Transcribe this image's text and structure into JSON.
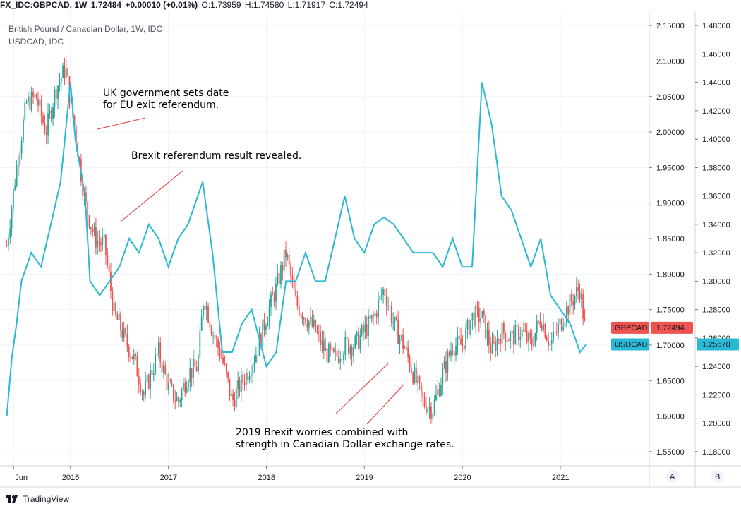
{
  "header": {
    "symbol": "FX_IDC:GBPCAD, 1W",
    "last": "1.72484",
    "change": "+0.00010 (+0.01%)",
    "open": "O:1.73959",
    "high": "H:1.74580",
    "low": "L:1.71917",
    "close": "C:1.72494"
  },
  "legend": {
    "main_title": "British Pound / Canadian Dollar, 1W, IDC",
    "secondary_title": "USDCAD, IDC"
  },
  "colors": {
    "up": "#26a69a",
    "down": "#ef5350",
    "usdcad_line": "#2ab9d4",
    "gbpcad_badge": "#ef5350",
    "usdcad_badge": "#2ab9d4",
    "annotation_line": "#e53935"
  },
  "annotations": [
    {
      "lines": [
        "UK government sets date",
        "for EU exit referendum."
      ]
    },
    {
      "lines": [
        "Brexit referendum result revealed."
      ]
    },
    {
      "lines": [
        "2019 Brexit worries combined with",
        "strength in Canadian Dollar exchange rates."
      ]
    }
  ],
  "badges": {
    "gbpcad_label": "GBPCAD",
    "gbpcad_value": "1.72494",
    "usdcad_label": "USDCAD",
    "usdcad_value": "1.25570"
  },
  "scale_buttons": {
    "a": "A",
    "b": "B"
  },
  "footer": {
    "brand": "TradingView"
  },
  "chart_data": {
    "type": "line",
    "title": "British Pound / Canadian Dollar, 1W, IDC",
    "x_ticks": [
      "Jun",
      "2016",
      "2017",
      "2018",
      "2019",
      "2020",
      "2021"
    ],
    "x_tick_dates": [
      2015.42,
      2016.0,
      2017.0,
      2018.0,
      2019.0,
      2020.0,
      2021.0
    ],
    "gbpcad_axis": {
      "ylim": [
        1.53,
        2.17
      ],
      "ticks": [
        "2.15000",
        "2.10000",
        "2.05000",
        "2.00000",
        "1.95000",
        "1.90000",
        "1.85000",
        "1.80000",
        "1.75000",
        "1.70000",
        "1.65000",
        "1.60000",
        "1.55000"
      ]
    },
    "usdcad_axis": {
      "ylim": [
        1.17,
        1.49
      ],
      "ticks": [
        "1.48000",
        "1.46000",
        "1.44000",
        "1.42000",
        "1.40000",
        "1.38000",
        "1.36000",
        "1.34000",
        "1.32000",
        "1.30000",
        "1.28000",
        "1.26000",
        "1.24000",
        "1.22000",
        "1.20000",
        "1.18000"
      ]
    },
    "series": [
      {
        "name": "GBPCAD",
        "style": "candlestick",
        "x": [
          2015.35,
          2015.45,
          2015.55,
          2015.65,
          2015.75,
          2015.85,
          2015.95,
          2016.05,
          2016.15,
          2016.25,
          2016.35,
          2016.45,
          2016.5,
          2016.55,
          2016.65,
          2016.75,
          2016.82,
          2016.9,
          2017.0,
          2017.1,
          2017.2,
          2017.3,
          2017.36,
          2017.45,
          2017.55,
          2017.65,
          2017.72,
          2017.8,
          2017.9,
          2018.0,
          2018.1,
          2018.2,
          2018.3,
          2018.4,
          2018.5,
          2018.6,
          2018.7,
          2018.8,
          2018.9,
          2019.0,
          2019.1,
          2019.2,
          2019.3,
          2019.4,
          2019.5,
          2019.6,
          2019.7,
          2019.8,
          2019.9,
          2020.0,
          2020.1,
          2020.2,
          2020.3,
          2020.4,
          2020.5,
          2020.6,
          2020.7,
          2020.8,
          2020.9,
          2021.0,
          2021.1,
          2021.2,
          2021.25
        ],
        "values": [
          1.84,
          1.95,
          2.04,
          2.05,
          2.0,
          2.06,
          2.09,
          2.0,
          1.9,
          1.85,
          1.84,
          1.74,
          1.73,
          1.71,
          1.68,
          1.63,
          1.66,
          1.69,
          1.64,
          1.62,
          1.66,
          1.67,
          1.77,
          1.72,
          1.68,
          1.62,
          1.64,
          1.66,
          1.69,
          1.74,
          1.78,
          1.83,
          1.76,
          1.74,
          1.72,
          1.69,
          1.68,
          1.7,
          1.7,
          1.72,
          1.74,
          1.78,
          1.73,
          1.7,
          1.66,
          1.62,
          1.61,
          1.66,
          1.7,
          1.7,
          1.74,
          1.74,
          1.69,
          1.72,
          1.71,
          1.72,
          1.7,
          1.74,
          1.7,
          1.73,
          1.76,
          1.78,
          1.725
        ]
      },
      {
        "name": "USDCAD",
        "style": "line",
        "x": [
          2015.35,
          2015.4,
          2015.45,
          2015.5,
          2015.6,
          2015.7,
          2015.8,
          2015.9,
          2016.0,
          2016.05,
          2016.15,
          2016.2,
          2016.3,
          2016.4,
          2016.5,
          2016.6,
          2016.7,
          2016.8,
          2016.9,
          2017.0,
          2017.1,
          2017.2,
          2017.3,
          2017.35,
          2017.45,
          2017.55,
          2017.65,
          2017.75,
          2017.85,
          2018.0,
          2018.1,
          2018.2,
          2018.3,
          2018.4,
          2018.5,
          2018.6,
          2018.7,
          2018.8,
          2018.9,
          2019.0,
          2019.1,
          2019.2,
          2019.3,
          2019.4,
          2019.5,
          2019.6,
          2019.7,
          2019.8,
          2019.9,
          2020.0,
          2020.1,
          2020.2,
          2020.3,
          2020.4,
          2020.5,
          2020.6,
          2020.7,
          2020.8,
          2020.9,
          2021.0,
          2021.1,
          2021.2,
          2021.27
        ],
        "values": [
          1.205,
          1.245,
          1.27,
          1.3,
          1.32,
          1.31,
          1.34,
          1.37,
          1.44,
          1.4,
          1.36,
          1.3,
          1.29,
          1.3,
          1.31,
          1.33,
          1.32,
          1.34,
          1.33,
          1.31,
          1.33,
          1.34,
          1.36,
          1.37,
          1.32,
          1.25,
          1.25,
          1.27,
          1.28,
          1.24,
          1.25,
          1.3,
          1.3,
          1.32,
          1.3,
          1.3,
          1.33,
          1.36,
          1.33,
          1.32,
          1.34,
          1.345,
          1.34,
          1.33,
          1.32,
          1.32,
          1.32,
          1.31,
          1.33,
          1.31,
          1.31,
          1.44,
          1.41,
          1.36,
          1.35,
          1.33,
          1.31,
          1.33,
          1.29,
          1.28,
          1.27,
          1.25,
          1.256
        ]
      }
    ]
  }
}
